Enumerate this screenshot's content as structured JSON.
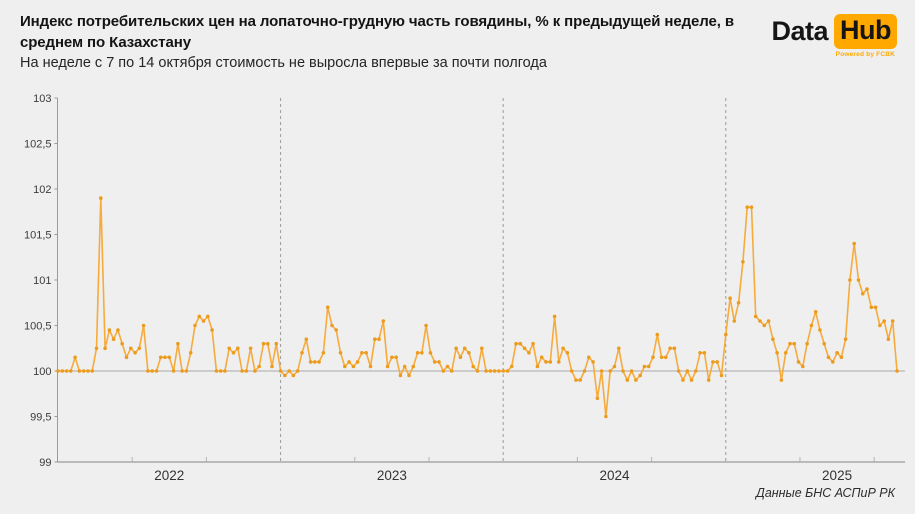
{
  "header": {
    "title": "Индекс потребительских цен на лопаточно-грудную часть говядины, % к предыдущей неделе, в среднем по Казахстану",
    "subtitle": "На неделе с 7 по 14 октября стоимость не выросла впервые за почти полгода"
  },
  "logo": {
    "part1": "Data",
    "part2": "Hub",
    "tagline": "Powered by FCBK"
  },
  "source": "Данные БНС АСПиР РК",
  "colors": {
    "background": "#efefef",
    "brand_orange": "#ffa800",
    "line": "#f6ab3c",
    "marker": "#eb9b1e",
    "axis": "#9b9b9b",
    "baseline": "#a8a8a8",
    "year_gridline": "#9b9b9b",
    "tick_text": "#3c3c3c"
  },
  "chart_data": {
    "type": "line",
    "title": "Индекс потребительских цен на лопаточно-грудную часть говядины, % к предыдущей неделе, в среднем по Казахстану",
    "xlabel": "",
    "ylabel": "",
    "ylim": [
      99,
      103
    ],
    "yticks": [
      99,
      99.5,
      100,
      100.5,
      101,
      101.5,
      102,
      102.5,
      103
    ],
    "ytick_labels": [
      "99",
      "99,5",
      "100",
      "100,5",
      "101",
      "101,5",
      "102",
      "102,5",
      "103"
    ],
    "baseline": 100,
    "grid": "baseline-and-year-separators",
    "legend": "none",
    "x_unit": "week",
    "years": [
      {
        "label": "2022",
        "weeks": 52
      },
      {
        "label": "2023",
        "weeks": 52
      },
      {
        "label": "2024",
        "weeks": 52
      },
      {
        "label": "2025",
        "weeks": 41
      }
    ],
    "series": [
      {
        "name": "ИПЦ на лопаточно-грудную часть говядины, % к предыдущей неделе",
        "values": [
          100.0,
          100.0,
          100.0,
          100.0,
          100.15,
          100.0,
          100.0,
          100.0,
          100.0,
          100.25,
          101.9,
          100.25,
          100.45,
          100.35,
          100.45,
          100.3,
          100.15,
          100.25,
          100.2,
          100.25,
          100.5,
          100.0,
          100.0,
          100.0,
          100.15,
          100.15,
          100.15,
          100.0,
          100.3,
          100.0,
          100.0,
          100.2,
          100.5,
          100.6,
          100.55,
          100.6,
          100.45,
          100.0,
          100.0,
          100.0,
          100.25,
          100.2,
          100.25,
          100.0,
          100.0,
          100.25,
          100.0,
          100.05,
          100.3,
          100.3,
          100.05,
          100.3,
          100.0,
          99.95,
          100.0,
          99.95,
          100.0,
          100.2,
          100.35,
          100.1,
          100.1,
          100.1,
          100.2,
          100.7,
          100.5,
          100.45,
          100.2,
          100.05,
          100.1,
          100.05,
          100.1,
          100.2,
          100.2,
          100.05,
          100.35,
          100.35,
          100.55,
          100.05,
          100.15,
          100.15,
          99.95,
          100.05,
          99.95,
          100.05,
          100.2,
          100.2,
          100.5,
          100.2,
          100.1,
          100.1,
          100.0,
          100.05,
          100.0,
          100.25,
          100.15,
          100.25,
          100.2,
          100.05,
          100.0,
          100.25,
          100.0,
          100.0,
          100.0,
          100.0,
          100.0,
          100.0,
          100.05,
          100.3,
          100.3,
          100.25,
          100.2,
          100.3,
          100.05,
          100.15,
          100.1,
          100.1,
          100.6,
          100.1,
          100.25,
          100.2,
          100.0,
          99.9,
          99.9,
          100.0,
          100.15,
          100.1,
          99.7,
          100.0,
          99.5,
          100.0,
          100.05,
          100.25,
          100.0,
          99.9,
          100.0,
          99.9,
          99.95,
          100.05,
          100.05,
          100.15,
          100.4,
          100.15,
          100.15,
          100.25,
          100.25,
          100.0,
          99.9,
          100.0,
          99.9,
          100.0,
          100.2,
          100.2,
          99.9,
          100.1,
          100.1,
          99.95,
          100.4,
          100.8,
          100.55,
          100.75,
          101.2,
          101.8,
          101.8,
          100.6,
          100.55,
          100.5,
          100.55,
          100.35,
          100.2,
          99.9,
          100.2,
          100.3,
          100.3,
          100.1,
          100.05,
          100.3,
          100.5,
          100.65,
          100.45,
          100.3,
          100.15,
          100.1,
          100.2,
          100.15,
          100.35,
          101.0,
          101.4,
          101.0,
          100.85,
          100.9,
          100.7,
          100.7,
          100.5,
          100.55,
          100.35,
          100.55,
          100.0
        ]
      }
    ]
  }
}
